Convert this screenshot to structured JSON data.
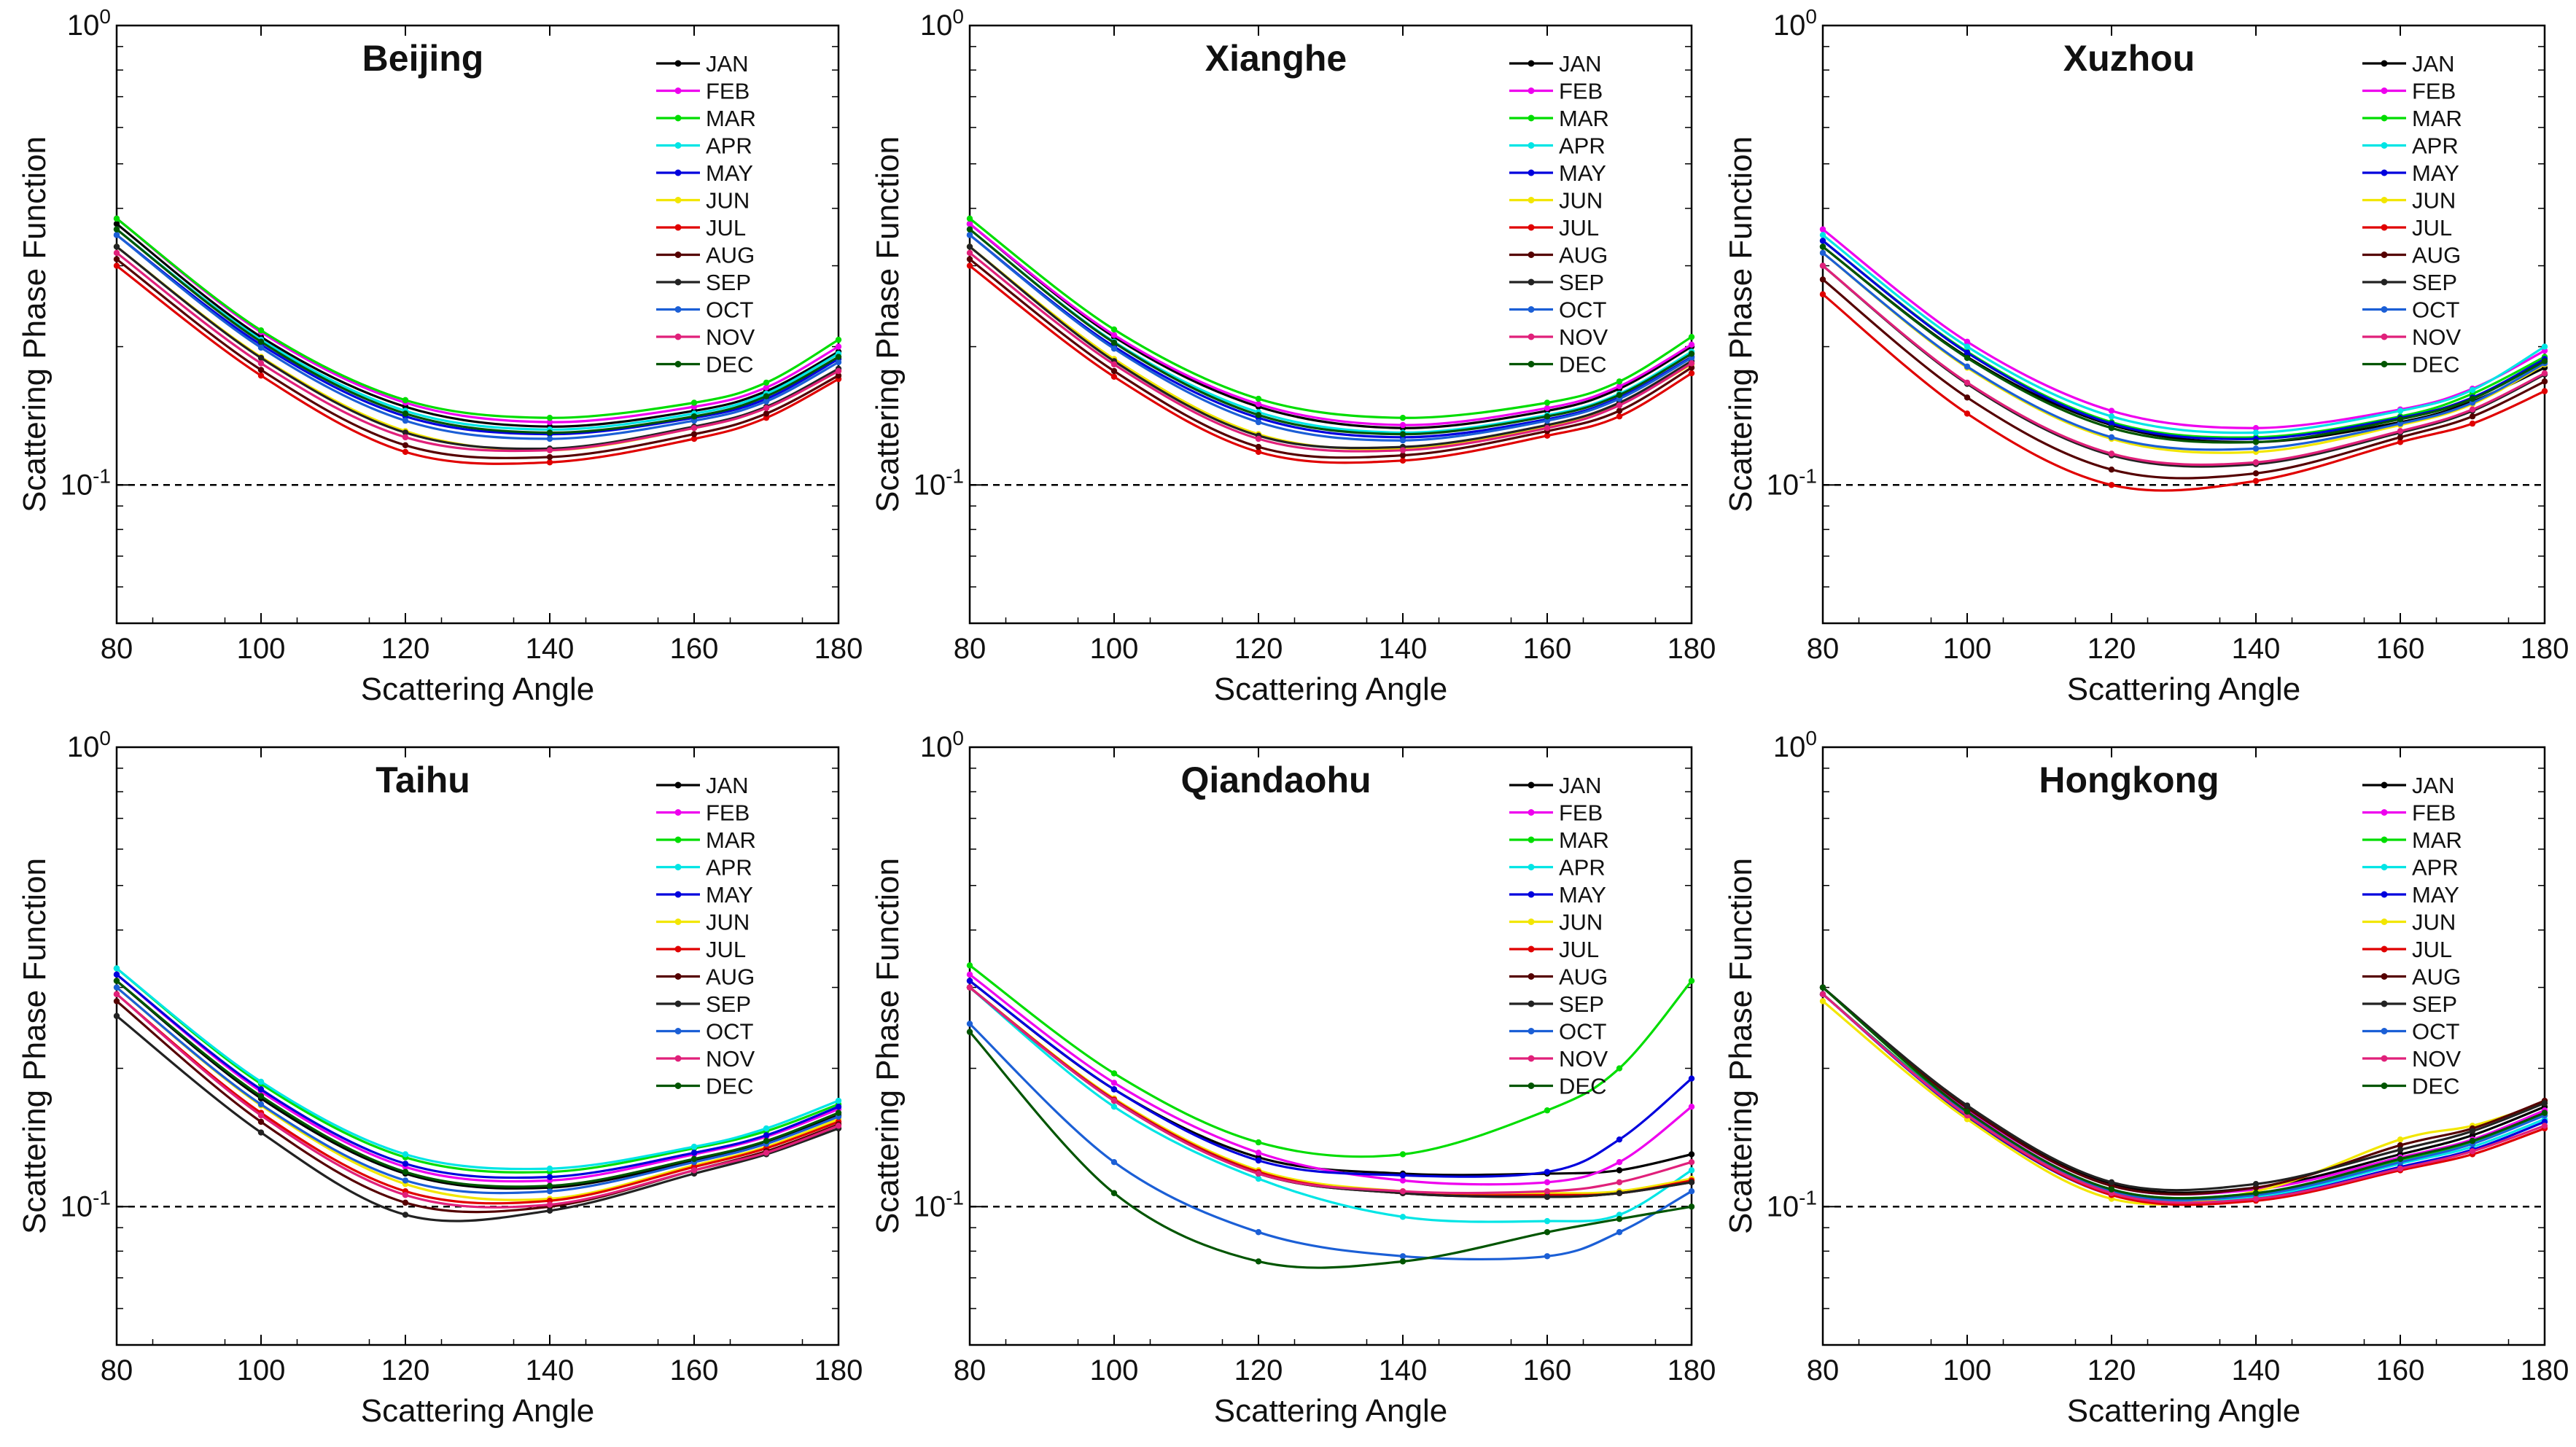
{
  "figure": {
    "x_label": "Scattering Angle",
    "y_label": "Scattering Phase Function",
    "y_tick_base": "10",
    "y_tick_exps": [
      "0",
      "-1"
    ],
    "x_ticks": [
      "80",
      "100",
      "120",
      "140",
      "160",
      "180"
    ],
    "reference_line": 0.1
  },
  "months": [
    {
      "name": "JAN",
      "color": "#000000"
    },
    {
      "name": "FEB",
      "color": "#ee00ee"
    },
    {
      "name": "MAR",
      "color": "#00dd00"
    },
    {
      "name": "APR",
      "color": "#00e5e5"
    },
    {
      "name": "MAY",
      "color": "#0000dd"
    },
    {
      "name": "JUN",
      "color": "#f2e600"
    },
    {
      "name": "JUL",
      "color": "#e00000"
    },
    {
      "name": "AUG",
      "color": "#550000"
    },
    {
      "name": "SEP",
      "color": "#222222"
    },
    {
      "name": "OCT",
      "color": "#1b5fd6"
    },
    {
      "name": "NOV",
      "color": "#e0207a"
    },
    {
      "name": "DEC",
      "color": "#005500"
    }
  ],
  "chart_data": [
    {
      "type": "line",
      "title": "Beijing",
      "xlabel": "Scattering Angle",
      "ylabel": "Scattering Phase Function",
      "yscale": "log",
      "xlim": [
        80,
        180
      ],
      "ylim": [
        0.05,
        1
      ],
      "legend": "top-right",
      "x": [
        80,
        100,
        120,
        140,
        160,
        170,
        180
      ],
      "series": [
        {
          "name": "JAN",
          "values": [
            0.37,
            0.21,
            0.148,
            0.134,
            0.145,
            0.16,
            0.195
          ]
        },
        {
          "name": "FEB",
          "values": [
            0.38,
            0.215,
            0.151,
            0.137,
            0.148,
            0.163,
            0.2
          ]
        },
        {
          "name": "MAR",
          "values": [
            0.38,
            0.217,
            0.153,
            0.14,
            0.151,
            0.167,
            0.207
          ]
        },
        {
          "name": "APR",
          "values": [
            0.36,
            0.207,
            0.145,
            0.132,
            0.143,
            0.158,
            0.193
          ]
        },
        {
          "name": "MAY",
          "values": [
            0.35,
            0.202,
            0.141,
            0.129,
            0.14,
            0.154,
            0.188
          ]
        },
        {
          "name": "JUN",
          "values": [
            0.33,
            0.19,
            0.131,
            0.119,
            0.133,
            0.147,
            0.177
          ]
        },
        {
          "name": "JUL",
          "values": [
            0.3,
            0.173,
            0.118,
            0.112,
            0.126,
            0.14,
            0.17
          ]
        },
        {
          "name": "AUG",
          "values": [
            0.31,
            0.178,
            0.122,
            0.115,
            0.129,
            0.143,
            0.173
          ]
        },
        {
          "name": "SEP",
          "values": [
            0.33,
            0.189,
            0.13,
            0.12,
            0.134,
            0.148,
            0.179
          ]
        },
        {
          "name": "OCT",
          "values": [
            0.35,
            0.199,
            0.138,
            0.126,
            0.138,
            0.152,
            0.185
          ]
        },
        {
          "name": "NOV",
          "values": [
            0.32,
            0.184,
            0.127,
            0.119,
            0.133,
            0.147,
            0.177
          ]
        },
        {
          "name": "DEC",
          "values": [
            0.36,
            0.205,
            0.143,
            0.13,
            0.141,
            0.156,
            0.19
          ]
        }
      ]
    },
    {
      "type": "line",
      "title": "Xianghe",
      "xlabel": "Scattering Angle",
      "ylabel": "Scattering Phase Function",
      "yscale": "log",
      "xlim": [
        80,
        180
      ],
      "ylim": [
        0.05,
        1
      ],
      "legend": "top-right",
      "x": [
        80,
        100,
        120,
        140,
        160,
        170,
        180
      ],
      "series": [
        {
          "name": "JAN",
          "values": [
            0.37,
            0.21,
            0.148,
            0.133,
            0.145,
            0.162,
            0.2
          ]
        },
        {
          "name": "FEB",
          "values": [
            0.37,
            0.212,
            0.15,
            0.135,
            0.147,
            0.164,
            0.202
          ]
        },
        {
          "name": "MAR",
          "values": [
            0.38,
            0.218,
            0.154,
            0.14,
            0.151,
            0.168,
            0.21
          ]
        },
        {
          "name": "APR",
          "values": [
            0.36,
            0.205,
            0.144,
            0.13,
            0.142,
            0.158,
            0.195
          ]
        },
        {
          "name": "MAY",
          "values": [
            0.35,
            0.2,
            0.14,
            0.127,
            0.139,
            0.155,
            0.19
          ]
        },
        {
          "name": "JUN",
          "values": [
            0.33,
            0.188,
            0.129,
            0.12,
            0.134,
            0.15,
            0.183
          ]
        },
        {
          "name": "JUL",
          "values": [
            0.3,
            0.172,
            0.118,
            0.113,
            0.128,
            0.141,
            0.175
          ]
        },
        {
          "name": "AUG",
          "values": [
            0.31,
            0.177,
            0.121,
            0.116,
            0.131,
            0.145,
            0.18
          ]
        },
        {
          "name": "SEP",
          "values": [
            0.33,
            0.186,
            0.128,
            0.121,
            0.135,
            0.151,
            0.186
          ]
        },
        {
          "name": "OCT",
          "values": [
            0.35,
            0.198,
            0.137,
            0.125,
            0.138,
            0.154,
            0.189
          ]
        },
        {
          "name": "NOV",
          "values": [
            0.32,
            0.183,
            0.126,
            0.119,
            0.133,
            0.149,
            0.184
          ]
        },
        {
          "name": "DEC",
          "values": [
            0.36,
            0.204,
            0.142,
            0.129,
            0.141,
            0.157,
            0.193
          ]
        }
      ]
    },
    {
      "type": "line",
      "title": "Xuzhou",
      "xlabel": "Scattering Angle",
      "ylabel": "Scattering Phase Function",
      "yscale": "log",
      "xlim": [
        80,
        180
      ],
      "ylim": [
        0.05,
        1
      ],
      "legend": "top-right",
      "x": [
        80,
        100,
        120,
        140,
        160,
        170,
        180
      ],
      "series": [
        {
          "name": "JAN",
          "values": [
            0.33,
            0.19,
            0.135,
            0.124,
            0.137,
            0.152,
            0.18
          ]
        },
        {
          "name": "FEB",
          "values": [
            0.36,
            0.205,
            0.145,
            0.133,
            0.146,
            0.162,
            0.196
          ]
        },
        {
          "name": "MAR",
          "values": [
            0.34,
            0.195,
            0.137,
            0.127,
            0.141,
            0.158,
            0.19
          ]
        },
        {
          "name": "APR",
          "values": [
            0.35,
            0.2,
            0.141,
            0.13,
            0.145,
            0.161,
            0.2
          ]
        },
        {
          "name": "MAY",
          "values": [
            0.34,
            0.194,
            0.136,
            0.126,
            0.14,
            0.155,
            0.188
          ]
        },
        {
          "name": "JUN",
          "values": [
            0.32,
            0.18,
            0.126,
            0.118,
            0.135,
            0.15,
            0.183
          ]
        },
        {
          "name": "JUL",
          "values": [
            0.26,
            0.143,
            0.1,
            0.102,
            0.124,
            0.136,
            0.16
          ]
        },
        {
          "name": "AUG",
          "values": [
            0.28,
            0.155,
            0.108,
            0.106,
            0.127,
            0.141,
            0.168
          ]
        },
        {
          "name": "SEP",
          "values": [
            0.3,
            0.166,
            0.116,
            0.111,
            0.13,
            0.145,
            0.174
          ]
        },
        {
          "name": "OCT",
          "values": [
            0.32,
            0.181,
            0.127,
            0.12,
            0.136,
            0.151,
            0.184
          ]
        },
        {
          "name": "NOV",
          "values": [
            0.3,
            0.167,
            0.117,
            0.112,
            0.131,
            0.146,
            0.175
          ]
        },
        {
          "name": "DEC",
          "values": [
            0.33,
            0.189,
            0.133,
            0.124,
            0.139,
            0.154,
            0.186
          ]
        }
      ]
    },
    {
      "type": "line",
      "title": "Taihu",
      "xlabel": "Scattering Angle",
      "ylabel": "Scattering Phase Function",
      "yscale": "log",
      "xlim": [
        80,
        180
      ],
      "ylim": [
        0.05,
        1
      ],
      "legend": "top-right",
      "x": [
        80,
        100,
        120,
        140,
        160,
        170,
        180
      ],
      "series": [
        {
          "name": "JAN",
          "values": [
            0.31,
            0.172,
            0.118,
            0.11,
            0.126,
            0.138,
            0.158
          ]
        },
        {
          "name": "FEB",
          "values": [
            0.32,
            0.178,
            0.122,
            0.114,
            0.13,
            0.142,
            0.163
          ]
        },
        {
          "name": "MAR",
          "values": [
            0.33,
            0.185,
            0.128,
            0.119,
            0.134,
            0.146,
            0.167
          ]
        },
        {
          "name": "APR",
          "values": [
            0.33,
            0.187,
            0.13,
            0.121,
            0.135,
            0.148,
            0.17
          ]
        },
        {
          "name": "MAY",
          "values": [
            0.32,
            0.18,
            0.124,
            0.116,
            0.131,
            0.143,
            0.165
          ]
        },
        {
          "name": "JUN",
          "values": [
            0.3,
            0.166,
            0.112,
            0.104,
            0.123,
            0.135,
            0.155
          ]
        },
        {
          "name": "JUL",
          "values": [
            0.29,
            0.16,
            0.108,
            0.103,
            0.122,
            0.134,
            0.153
          ]
        },
        {
          "name": "AUG",
          "values": [
            0.28,
            0.153,
            0.102,
            0.1,
            0.12,
            0.132,
            0.151
          ]
        },
        {
          "name": "SEP",
          "values": [
            0.26,
            0.145,
            0.096,
            0.098,
            0.118,
            0.13,
            0.148
          ]
        },
        {
          "name": "OCT",
          "values": [
            0.3,
            0.167,
            0.114,
            0.108,
            0.125,
            0.137,
            0.157
          ]
        },
        {
          "name": "NOV",
          "values": [
            0.29,
            0.158,
            0.106,
            0.101,
            0.12,
            0.131,
            0.15
          ]
        },
        {
          "name": "DEC",
          "values": [
            0.31,
            0.174,
            0.119,
            0.111,
            0.127,
            0.139,
            0.16
          ]
        }
      ]
    },
    {
      "type": "line",
      "title": "Qiandaohu",
      "xlabel": "Scattering Angle",
      "ylabel": "Scattering Phase Function",
      "yscale": "log",
      "xlim": [
        80,
        180
      ],
      "ylim": [
        0.05,
        1
      ],
      "legend": "top-right",
      "x": [
        80,
        100,
        120,
        140,
        160,
        170,
        180
      ],
      "series": [
        {
          "name": "JAN",
          "values": [
            0.31,
            0.18,
            0.128,
            0.118,
            0.118,
            0.12,
            0.13
          ]
        },
        {
          "name": "FEB",
          "values": [
            0.32,
            0.186,
            0.131,
            0.114,
            0.113,
            0.125,
            0.165
          ]
        },
        {
          "name": "MAR",
          "values": [
            0.335,
            0.195,
            0.138,
            0.13,
            0.162,
            0.2,
            0.31
          ]
        },
        {
          "name": "APR",
          "values": [
            0.3,
            0.165,
            0.115,
            0.095,
            0.093,
            0.096,
            0.12
          ]
        },
        {
          "name": "MAY",
          "values": [
            0.31,
            0.18,
            0.126,
            0.117,
            0.119,
            0.14,
            0.19
          ]
        },
        {
          "name": "JUN",
          "values": [
            0.3,
            0.172,
            0.12,
            0.108,
            0.107,
            0.108,
            0.115
          ]
        },
        {
          "name": "JUL",
          "values": [
            0.3,
            0.171,
            0.119,
            0.107,
            0.106,
            0.107,
            0.114
          ]
        },
        {
          "name": "AUG",
          "values": [
            0.3,
            0.17,
            0.118,
            0.107,
            0.105,
            0.107,
            0.113
          ]
        },
        {
          "name": "SEP",
          "values": [
            0.3,
            0.17,
            0.118,
            0.107,
            0.105,
            0.107,
            0.113
          ]
        },
        {
          "name": "OCT",
          "values": [
            0.25,
            0.125,
            0.088,
            0.078,
            0.078,
            0.088,
            0.108
          ]
        },
        {
          "name": "NOV",
          "values": [
            0.3,
            0.17,
            0.118,
            0.108,
            0.108,
            0.113,
            0.125
          ]
        },
        {
          "name": "DEC",
          "values": [
            0.24,
            0.107,
            0.076,
            0.076,
            0.088,
            0.094,
            0.1
          ]
        }
      ]
    },
    {
      "type": "line",
      "title": "Hongkong",
      "xlabel": "Scattering Angle",
      "ylabel": "Scattering Phase Function",
      "yscale": "log",
      "xlim": [
        80,
        180
      ],
      "ylim": [
        0.05,
        1
      ],
      "legend": "top-right",
      "x": [
        80,
        100,
        120,
        140,
        160,
        170,
        180
      ],
      "series": [
        {
          "name": "JAN",
          "values": [
            0.3,
            0.165,
            0.112,
            0.11,
            0.13,
            0.143,
            0.165
          ]
        },
        {
          "name": "FEB",
          "values": [
            0.3,
            0.163,
            0.111,
            0.109,
            0.128,
            0.14,
            0.162
          ]
        },
        {
          "name": "MAR",
          "values": [
            0.29,
            0.16,
            0.109,
            0.107,
            0.126,
            0.138,
            0.158
          ]
        },
        {
          "name": "APR",
          "values": [
            0.29,
            0.158,
            0.107,
            0.105,
            0.124,
            0.135,
            0.155
          ]
        },
        {
          "name": "MAY",
          "values": [
            0.29,
            0.157,
            0.106,
            0.104,
            0.122,
            0.133,
            0.153
          ]
        },
        {
          "name": "JUN",
          "values": [
            0.28,
            0.155,
            0.104,
            0.108,
            0.14,
            0.15,
            0.168
          ]
        },
        {
          "name": "JUL",
          "values": [
            0.29,
            0.158,
            0.106,
            0.103,
            0.12,
            0.13,
            0.148
          ]
        },
        {
          "name": "AUG",
          "values": [
            0.3,
            0.164,
            0.111,
            0.11,
            0.136,
            0.148,
            0.17
          ]
        },
        {
          "name": "SEP",
          "values": [
            0.3,
            0.166,
            0.113,
            0.112,
            0.133,
            0.146,
            0.168
          ]
        },
        {
          "name": "OCT",
          "values": [
            0.29,
            0.159,
            0.108,
            0.106,
            0.125,
            0.137,
            0.158
          ]
        },
        {
          "name": "NOV",
          "values": [
            0.29,
            0.158,
            0.107,
            0.104,
            0.121,
            0.132,
            0.15
          ]
        },
        {
          "name": "DEC",
          "values": [
            0.3,
            0.161,
            0.109,
            0.107,
            0.127,
            0.139,
            0.16
          ]
        }
      ]
    }
  ]
}
